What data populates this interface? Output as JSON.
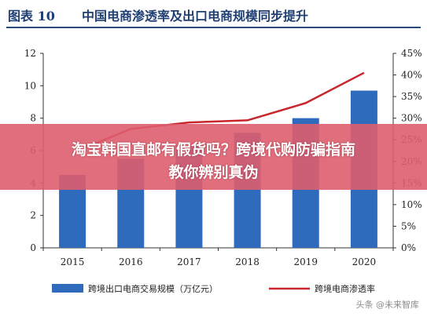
{
  "figure": {
    "label": "图表 10",
    "title": "中国电商渗透率及出口电商规模同步提升"
  },
  "chart_data": {
    "type": "bar",
    "categories": [
      "2015",
      "2016",
      "2017",
      "2018",
      "2019",
      "2020"
    ],
    "series": [
      {
        "name": "跨境出口电商交易规模（万亿元）",
        "type": "bar",
        "axis": "left",
        "color": "#2f6bbd",
        "values": [
          4.5,
          5.5,
          6.3,
          7.1,
          8.0,
          9.7
        ]
      },
      {
        "name": "跨境电商渗透率",
        "type": "line",
        "axis": "right",
        "color": "#c8252d",
        "values": [
          22.0,
          27.5,
          29.0,
          29.5,
          33.5,
          40.5
        ]
      }
    ],
    "y_left": {
      "ticks": [
        "0",
        "2",
        "4",
        "6",
        "8",
        "10",
        "12"
      ],
      "min": 0,
      "max": 12
    },
    "y_right": {
      "ticks": [
        "0%",
        "5%",
        "10%",
        "15%",
        "20%",
        "25%",
        "30%",
        "35%",
        "40%",
        "45%"
      ],
      "min": 0,
      "max": 45
    },
    "grid": false,
    "legend_position": "bottom"
  },
  "banner": {
    "line1": "淘宝韩国直邮有假货吗？跨境代购防骗指南",
    "line2": "教你辨别真伪"
  },
  "watermark": "头条 @未来智库"
}
